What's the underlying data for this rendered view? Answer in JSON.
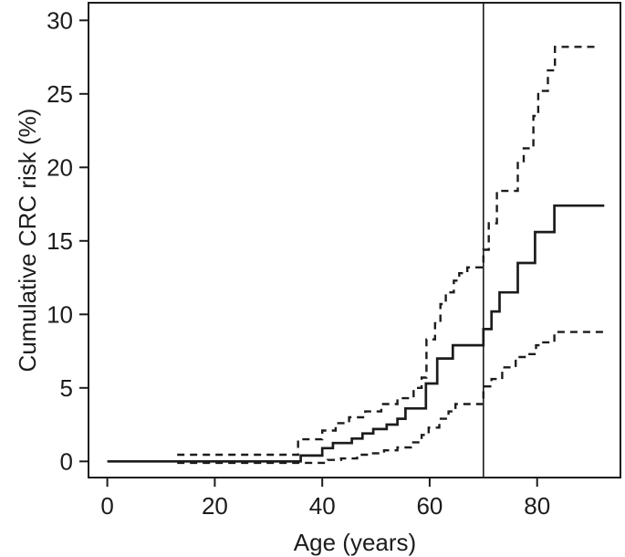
{
  "figure": {
    "background": "#ffffff",
    "line_color": "#1c1c1c",
    "axis_color": "#1c1c1c",
    "text_color": "#1c1c1c"
  },
  "chart_data": {
    "type": "line",
    "subtype": "step",
    "title": "",
    "xlabel": "Age (years)",
    "ylabel": "Cumulative CRC risk (%)",
    "xlim": [
      -3.5,
      95.5
    ],
    "ylim": [
      -1.1,
      31.2
    ],
    "x_ticks": [
      0,
      20,
      40,
      60,
      80
    ],
    "y_ticks": [
      0,
      5,
      10,
      15,
      20,
      25,
      30
    ],
    "grid": false,
    "legend": "none",
    "reference_line": {
      "axis": "x",
      "value": 70
    },
    "series": [
      {
        "name": "cumulative-crc-risk-estimate",
        "style": "solid",
        "step": true,
        "points": [
          [
            0,
            0
          ],
          [
            36,
            0.4
          ],
          [
            40,
            0.9
          ],
          [
            42,
            1.25
          ],
          [
            45.5,
            1.55
          ],
          [
            47.5,
            1.9
          ],
          [
            49.5,
            2.2
          ],
          [
            52,
            2.5
          ],
          [
            54,
            2.9
          ],
          [
            55.5,
            3.6
          ],
          [
            59.3,
            5.3
          ],
          [
            61.4,
            7.0
          ],
          [
            64.3,
            7.9
          ],
          [
            70,
            9.0
          ],
          [
            71.5,
            10.2
          ],
          [
            73,
            11.5
          ],
          [
            76.4,
            13.5
          ],
          [
            79.6,
            15.6
          ],
          [
            83.2,
            17.4
          ],
          [
            92.5,
            17.4
          ]
        ]
      },
      {
        "name": "upper-95ci",
        "style": "dashed",
        "step": true,
        "points": [
          [
            13,
            0.45
          ],
          [
            35.5,
            1.5
          ],
          [
            40,
            2.1
          ],
          [
            42.5,
            2.6
          ],
          [
            45,
            3.0
          ],
          [
            48,
            3.4
          ],
          [
            51,
            3.9
          ],
          [
            54,
            4.3
          ],
          [
            57,
            5.0
          ],
          [
            58.5,
            5.7
          ],
          [
            59.4,
            8.3
          ],
          [
            61,
            9.4
          ],
          [
            62,
            10.7
          ],
          [
            63,
            11.5
          ],
          [
            64.5,
            12.3
          ],
          [
            65.5,
            12.8
          ],
          [
            67,
            13.2
          ],
          [
            70,
            14.4
          ],
          [
            71,
            16.2
          ],
          [
            72.5,
            18.4
          ],
          [
            76.4,
            20.3
          ],
          [
            77.5,
            21.3
          ],
          [
            79.3,
            23.5
          ],
          [
            80.2,
            25.2
          ],
          [
            82,
            26.6
          ],
          [
            83.3,
            28.2
          ],
          [
            91.5,
            28.2
          ]
        ]
      },
      {
        "name": "lower-95ci",
        "style": "dashed",
        "step": true,
        "points": [
          [
            13,
            -0.1
          ],
          [
            41,
            0.1
          ],
          [
            43.5,
            0.2
          ],
          [
            46.5,
            0.45
          ],
          [
            49,
            0.55
          ],
          [
            51.5,
            0.75
          ],
          [
            54,
            0.95
          ],
          [
            56.5,
            1.3
          ],
          [
            58.5,
            1.8
          ],
          [
            59.8,
            2.3
          ],
          [
            61.8,
            2.9
          ],
          [
            63.5,
            3.4
          ],
          [
            64.8,
            3.9
          ],
          [
            70,
            5.1
          ],
          [
            71.5,
            5.6
          ],
          [
            73.5,
            6.4
          ],
          [
            76,
            7.1
          ],
          [
            78,
            7.3
          ],
          [
            79.8,
            7.9
          ],
          [
            80.8,
            8.1
          ],
          [
            83.2,
            8.8
          ],
          [
            92.5,
            8.8
          ]
        ]
      }
    ]
  }
}
